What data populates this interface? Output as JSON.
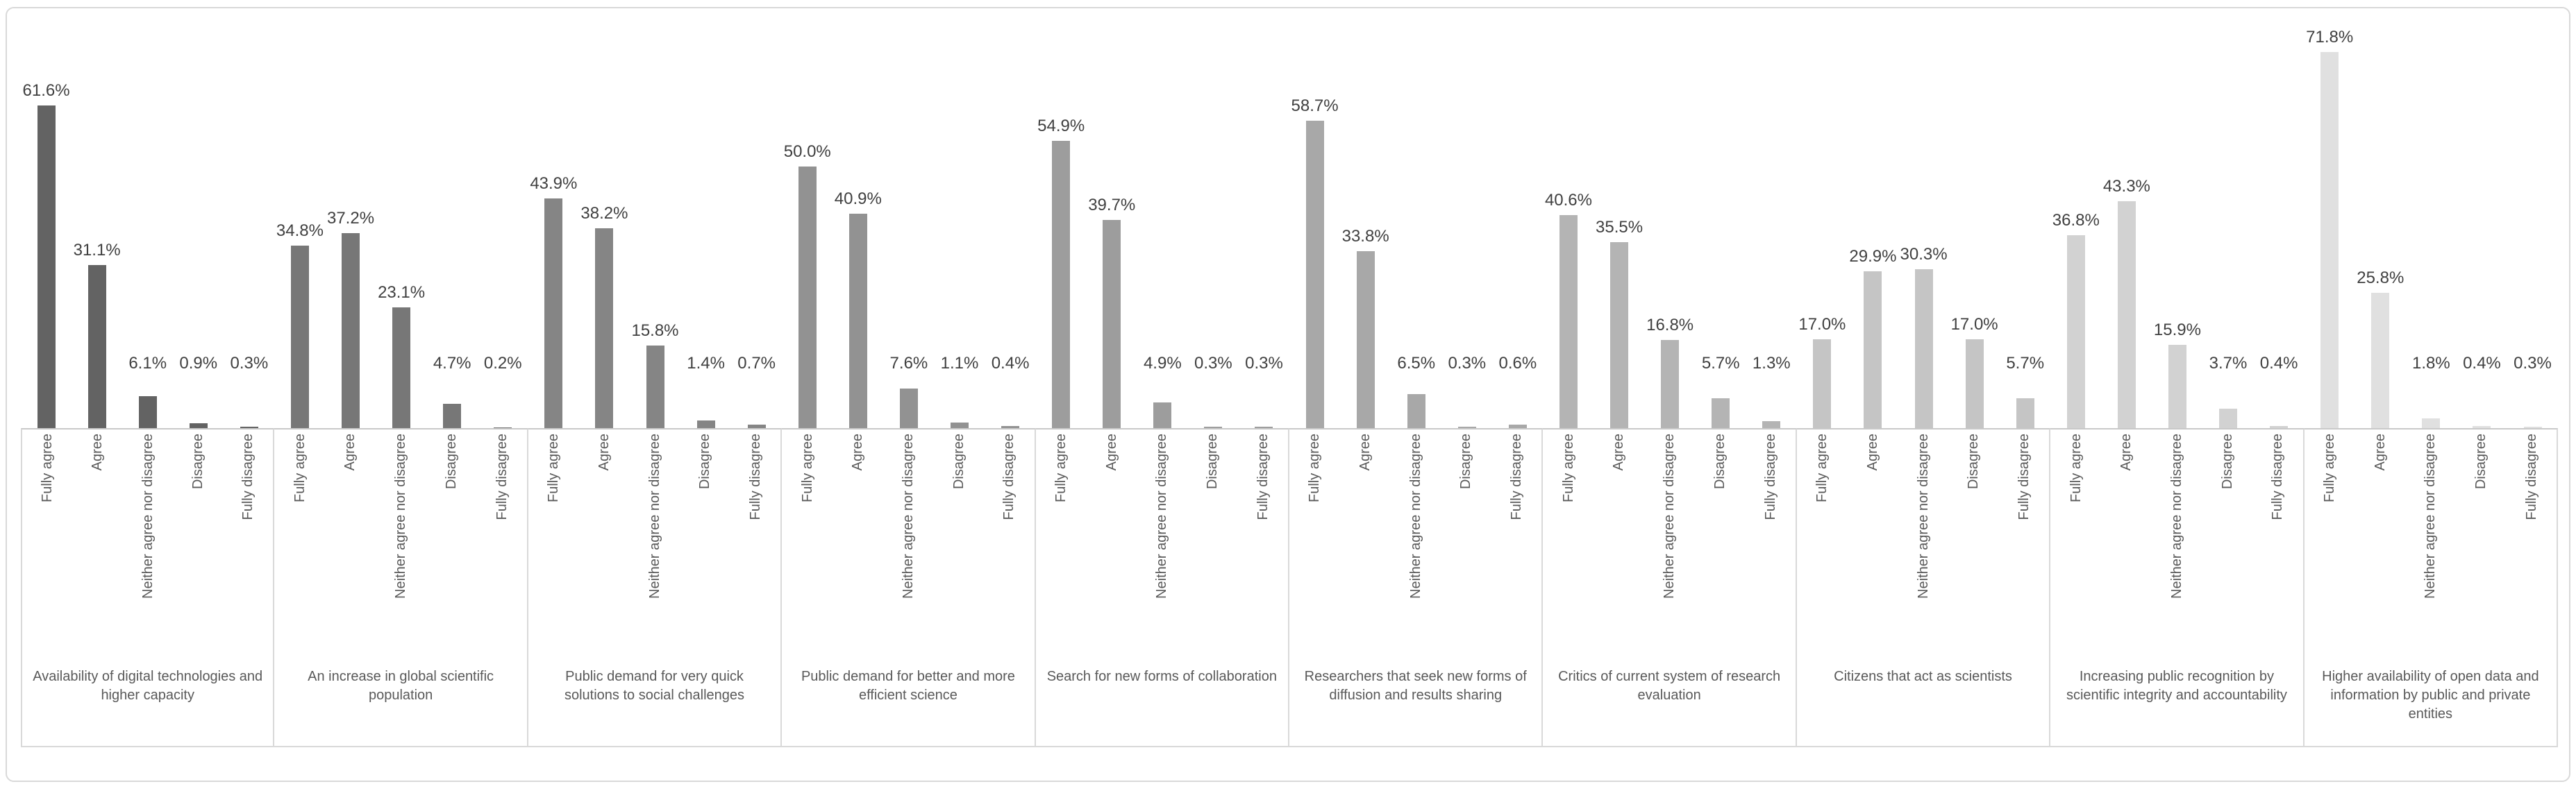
{
  "chart_data": {
    "type": "bar",
    "title": "",
    "xlabel": "",
    "ylabel": "",
    "ylim": [
      0,
      80
    ],
    "grid": false,
    "legend_position": "none",
    "value_suffix": "%",
    "response_categories": [
      "Fully agree",
      "Agree",
      "Neither agree nor disagree",
      "Disagree",
      "Fully disagree"
    ],
    "colors": {
      "frame_border": "#d9d9d9",
      "axis_line": "#c9c9c9",
      "value_label_text": "#404040",
      "axis_label_text": "#595959"
    },
    "groups": [
      {
        "label": "Availability of digital technologies and higher capacity",
        "values": [
          61.6,
          31.1,
          6.1,
          0.9,
          0.3
        ],
        "labels": [
          "61.6%",
          "31.1%",
          "6.1%",
          "0.9%",
          "0.3%"
        ],
        "color": "#636363"
      },
      {
        "label": "An increase in global scientific population",
        "values": [
          34.8,
          37.2,
          23.1,
          4.7,
          0.2
        ],
        "labels": [
          "34.8%",
          "37.2%",
          "23.1%",
          "4.7%",
          "0.2%"
        ],
        "color": "#777777"
      },
      {
        "label": "Public demand for very quick solutions to social challenges",
        "values": [
          43.9,
          38.2,
          15.8,
          1.4,
          0.7
        ],
        "labels": [
          "43.9%",
          "38.2%",
          "15.8%",
          "1.4%",
          "0.7%"
        ],
        "color": "#858585"
      },
      {
        "label": "Public demand for better and more efficient science",
        "values": [
          50.0,
          40.9,
          7.6,
          1.1,
          0.4
        ],
        "labels": [
          "50.0%",
          "40.9%",
          "7.6%",
          "1.1%",
          "0.4%"
        ],
        "color": "#929292"
      },
      {
        "label": "Search for new forms of collaboration",
        "values": [
          54.9,
          39.7,
          4.9,
          0.3,
          0.3
        ],
        "labels": [
          "54.9%",
          "39.7%",
          "4.9%",
          "0.3%",
          "0.3%"
        ],
        "color": "#9d9d9d"
      },
      {
        "label": "Researchers that seek new forms of diffusion and results sharing",
        "values": [
          58.7,
          33.8,
          6.5,
          0.3,
          0.6
        ],
        "labels": [
          "58.7%",
          "33.8%",
          "6.5%",
          "0.3%",
          "0.6%"
        ],
        "color": "#a8a8a8"
      },
      {
        "label": "Critics of current system of research evaluation",
        "values": [
          40.6,
          35.5,
          16.8,
          5.7,
          1.3
        ],
        "labels": [
          "40.6%",
          "35.5%",
          "16.8%",
          "5.7%",
          "1.3%"
        ],
        "color": "#b4b4b4"
      },
      {
        "label": "Citizens that act as scientists",
        "values": [
          17.0,
          29.9,
          30.3,
          17.0,
          5.7
        ],
        "labels": [
          "17.0%",
          "29.9%",
          "30.3%",
          "17.0%",
          "5.7%"
        ],
        "color": "#c5c5c5"
      },
      {
        "label": "Increasing public recognition by scientific integrity and accountability",
        "values": [
          36.8,
          43.3,
          15.9,
          3.7,
          0.4
        ],
        "labels": [
          "36.8%",
          "43.3%",
          "15.9%",
          "3.7%",
          "0.4%"
        ],
        "color": "#d2d2d2"
      },
      {
        "label": "Higher availability of open data and information by public and private entities",
        "values": [
          71.8,
          25.8,
          1.8,
          0.4,
          0.3
        ],
        "labels": [
          "71.8%",
          "25.8%",
          "1.8%",
          "0.4%",
          "0.3%"
        ],
        "color": "#e0e0e0"
      }
    ]
  }
}
